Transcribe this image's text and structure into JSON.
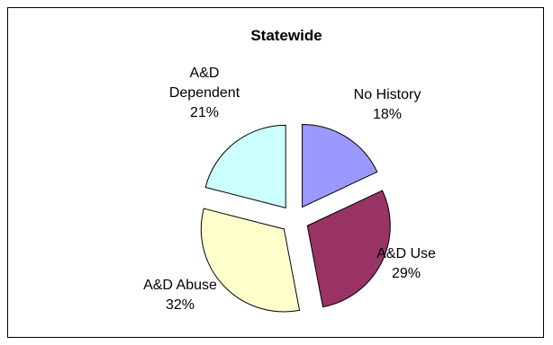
{
  "chart_data": {
    "type": "pie",
    "title": "Statewide",
    "start_angle_deg": 0,
    "direction": "clockwise",
    "exploded": true,
    "slices": [
      {
        "label_lines": [
          "No History",
          "18%"
        ],
        "value": 18,
        "color": "#9999ff"
      },
      {
        "label_lines": [
          "A&D Use",
          "29%"
        ],
        "value": 29,
        "color": "#993366"
      },
      {
        "label_lines": [
          "A&D Abuse",
          "32%"
        ],
        "value": 32,
        "color": "#ffffcc"
      },
      {
        "label_lines": [
          "A&D",
          "Dependent",
          "21%"
        ],
        "value": 21,
        "color": "#ccffff"
      }
    ]
  }
}
